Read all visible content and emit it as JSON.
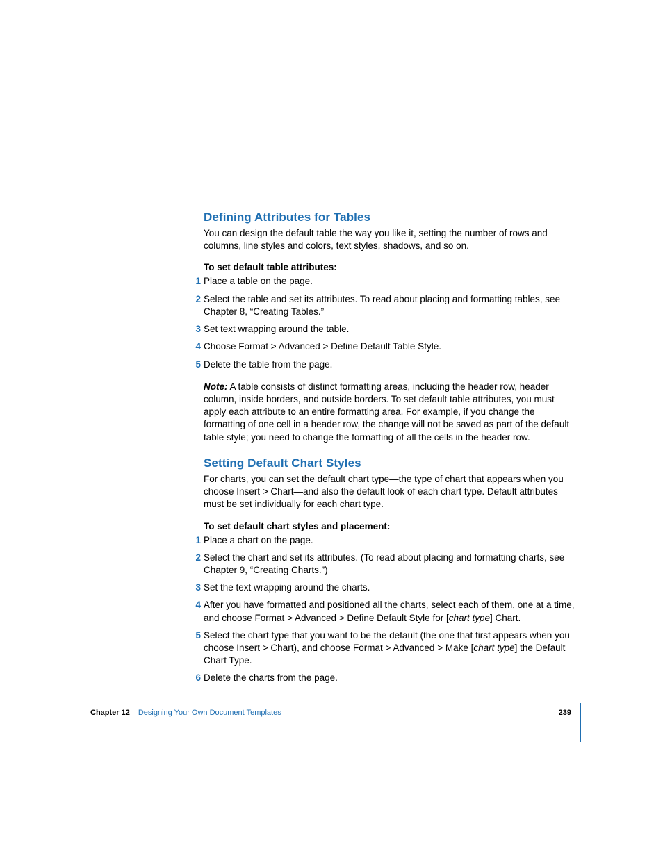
{
  "colors": {
    "accent": "#1f6fb2",
    "text": "#000000",
    "background": "#ffffff"
  },
  "typography": {
    "body_fontsize_pt": 10,
    "heading_fontsize_pt": 13,
    "footer_fontsize_pt": 8
  },
  "section1": {
    "heading": "Defining Attributes for Tables",
    "intro": "You can design the default table the way you like it, setting the number of rows and columns, line styles and colors, text styles, shadows, and so on.",
    "subhead": "To set default table attributes:",
    "steps": [
      {
        "num": "1",
        "text": "Place a table on the page."
      },
      {
        "num": "2",
        "text": "Select the table and set its attributes. To read about placing and formatting tables, see Chapter 8, “Creating Tables.”"
      },
      {
        "num": "3",
        "text": "Set text wrapping around the table."
      },
      {
        "num": "4",
        "text": "Choose Format > Advanced > Define Default Table Style."
      },
      {
        "num": "5",
        "text": "Delete the table from the page."
      }
    ],
    "note_label": "Note:",
    "note_body": "  A table consists of distinct formatting areas, including the header row, header column, inside borders, and outside borders. To set default table attributes, you must apply each attribute to an entire formatting area. For example, if you change the formatting of one cell in a header row, the change will not be saved as part of the default table style; you need to change the formatting of all the cells in the header row."
  },
  "section2": {
    "heading": "Setting Default Chart Styles",
    "intro": "For charts, you can set the default chart type—the type of chart that appears when you choose Insert > Chart—and also the default look of each chart type. Default attributes must be set individually for each chart type.",
    "subhead": "To set default chart styles and placement:",
    "steps": [
      {
        "num": "1",
        "text": "Place a chart on the page."
      },
      {
        "num": "2",
        "text": "Select the chart and set its attributes. (To read about placing and formatting charts, see Chapter 9, “Creating Charts.”)"
      },
      {
        "num": "3",
        "text": "Set the text wrapping around the charts."
      },
      {
        "num": "4",
        "pre": "After you have formatted and positioned all the charts, select each of them, one at a time, and choose Format > Advanced > Define Default Style for [",
        "ital": "chart type",
        "post": "] Chart."
      },
      {
        "num": "5",
        "pre": "Select the chart type that you want to be the default (the one that first appears when you choose Insert > Chart), and choose Format > Advanced > Make [",
        "ital": "chart type",
        "post": "] the Default Chart Type."
      },
      {
        "num": "6",
        "text": "Delete the charts from the page."
      }
    ]
  },
  "footer": {
    "chapter_label": "Chapter 12",
    "chapter_title": "Designing Your Own Document Templates",
    "page_number": "239"
  }
}
